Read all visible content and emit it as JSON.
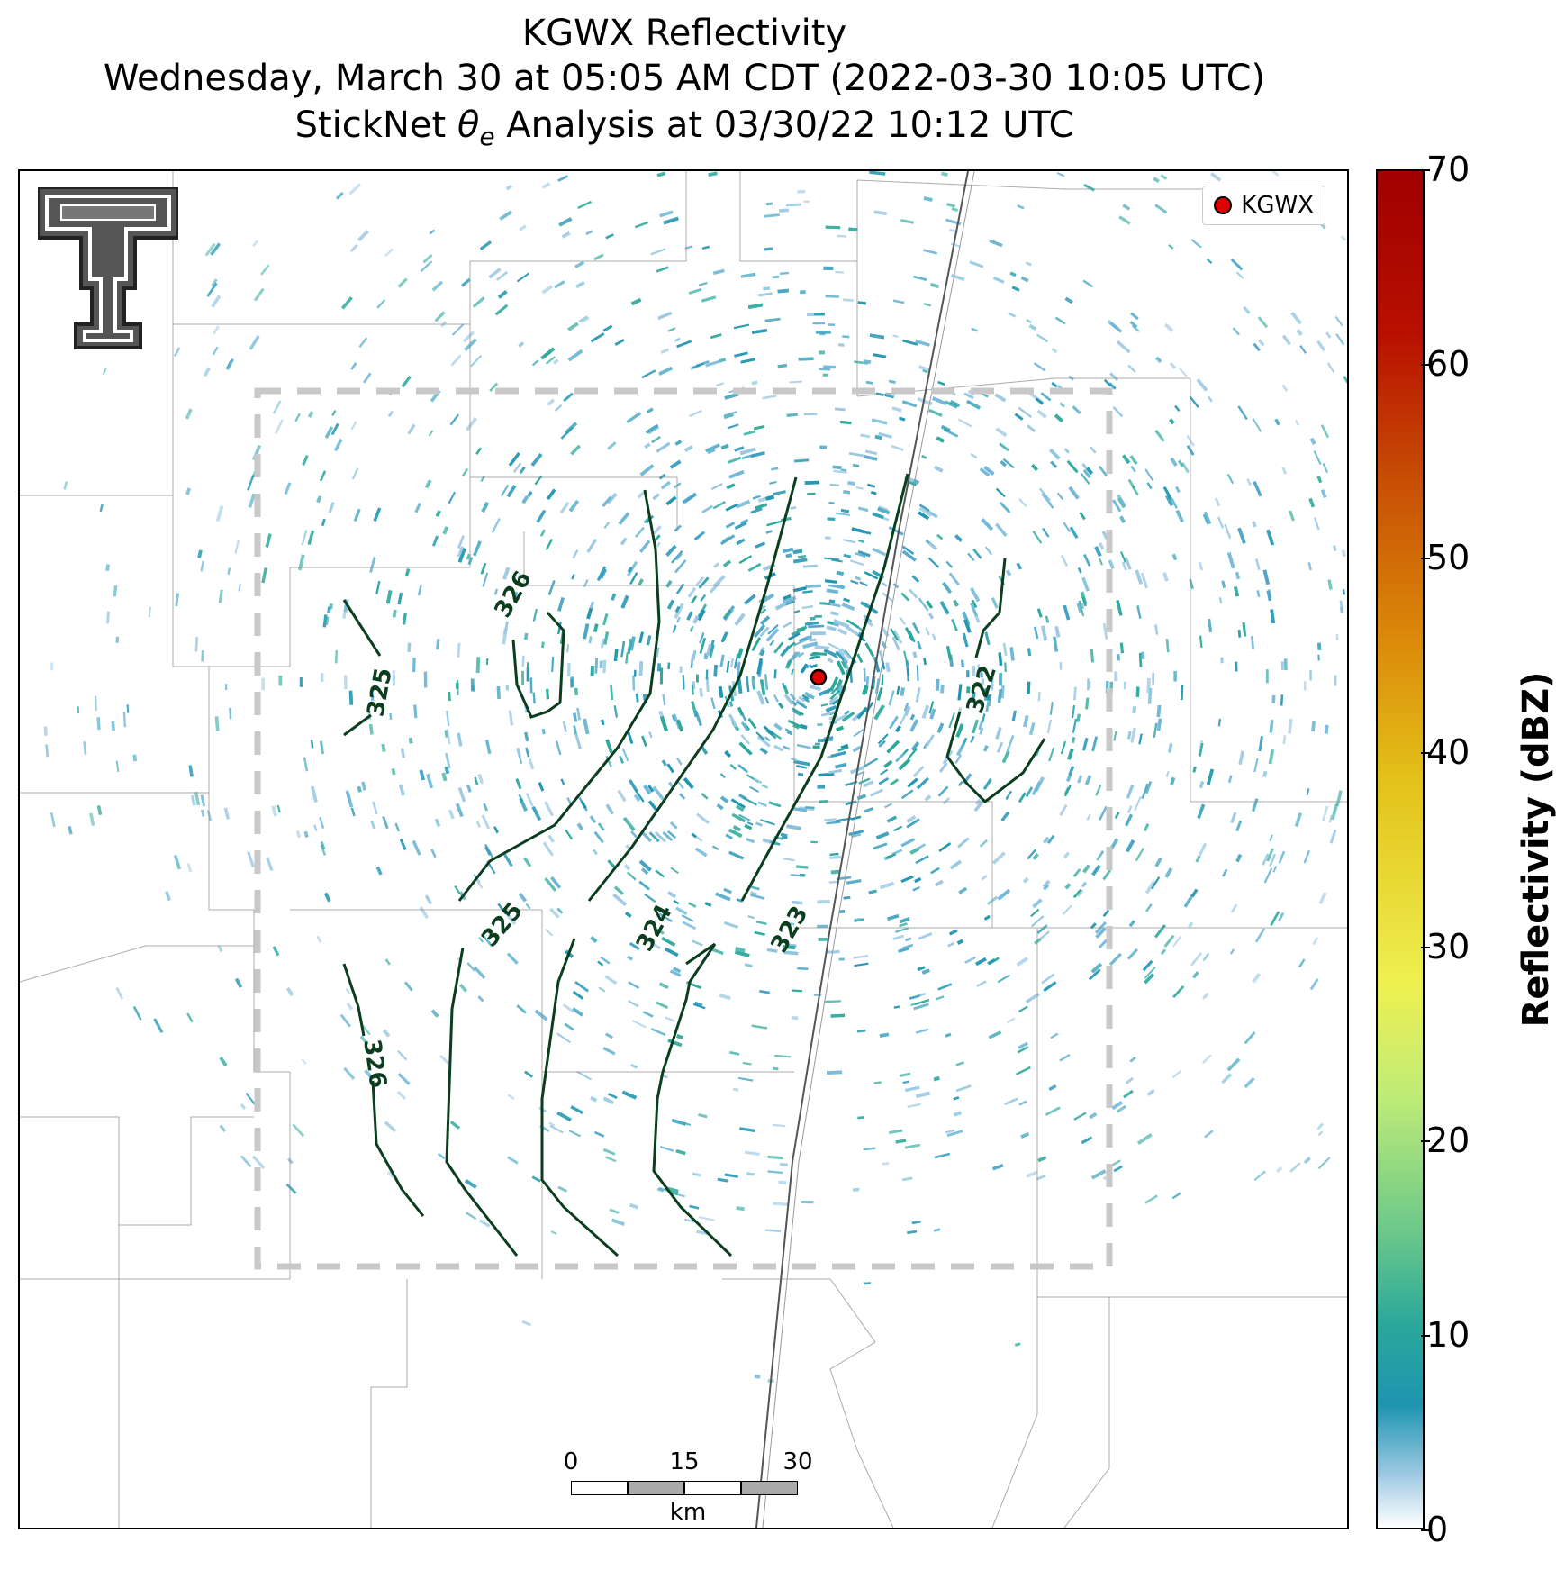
{
  "header": {
    "title_line1": "KGWX Reflectivity",
    "title_line2": "Wednesday, March 30 at 05:05 AM CDT (2022-03-30 10:05 UTC)",
    "title_line3_prefix": "StickNet ",
    "title_line3_theta": "θ",
    "title_line3_sub": "e",
    "title_line3_suffix": " Analysis at 03/30/22 10:12 UTC"
  },
  "legend": {
    "label": "KGWX",
    "marker_color": "#e00000"
  },
  "radar_site": {
    "name": "KGWX"
  },
  "contours": {
    "color": "#0b3d1f",
    "labels": [
      "326",
      "325",
      "325",
      "324",
      "323",
      "322",
      "326"
    ]
  },
  "scalebar": {
    "ticks": [
      "0",
      "15",
      "30"
    ],
    "unit": "km"
  },
  "colorbar": {
    "label": "Reflectivity (dBZ)",
    "ticks": [
      "0",
      "10",
      "20",
      "30",
      "40",
      "50",
      "60",
      "70"
    ],
    "range": [
      0,
      70
    ]
  },
  "colors": {
    "reflectivity_low": "#9cc8e2",
    "reflectivity_mid": "#1e95b0",
    "reflectivity_high": "#2aa89a",
    "analysis_box": "#c8c8c8"
  }
}
